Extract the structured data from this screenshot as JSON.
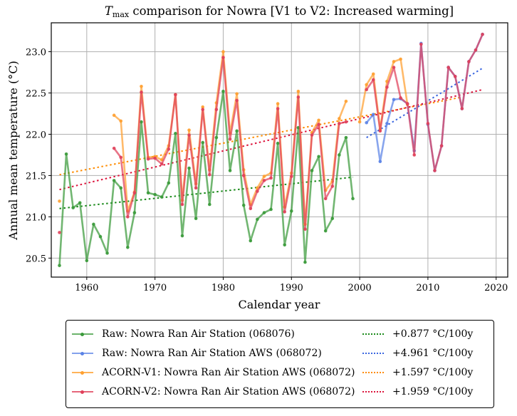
{
  "chart_data": {
    "type": "line",
    "title_main": "T",
    "title_sub": "max",
    "title_rest": " comparison for Nowra  [V1 to V2: Increased warming]",
    "xlabel": "Calendar year",
    "ylabel": "Annual mean temperature (°C)",
    "xlim": [
      1954.8,
      2021.7
    ],
    "ylim": [
      20.27,
      23.35
    ],
    "xticks": [
      1960,
      1970,
      1980,
      1990,
      2000,
      2010,
      2020
    ],
    "yticks": [
      20.5,
      21.0,
      21.5,
      22.0,
      22.5,
      23.0
    ],
    "ytick_labels": [
      "20.5",
      "21.0",
      "21.5",
      "22.0",
      "22.5",
      "23.0"
    ],
    "grid": true,
    "legend_position": "below",
    "series": [
      {
        "name": "Raw: Nowra Ran Air Station (068076)",
        "color": "#3a9a3a",
        "x": [
          1956,
          1957,
          1958,
          1959,
          1960,
          1961,
          1962,
          1963,
          1964,
          1965,
          1966,
          1967,
          1968,
          1969,
          1970,
          1971,
          1972,
          1973,
          1974,
          1975,
          1976,
          1977,
          1978,
          1979,
          1980,
          1981,
          1982,
          1983,
          1984,
          1985,
          1986,
          1987,
          1988,
          1989,
          1990,
          1991,
          1992,
          1993,
          1994,
          1995,
          1996,
          1997,
          1998,
          1999
        ],
        "y": [
          20.41,
          21.76,
          21.11,
          21.17,
          20.47,
          20.91,
          20.76,
          20.56,
          21.44,
          21.35,
          20.63,
          21.05,
          22.15,
          21.29,
          21.27,
          21.24,
          21.41,
          22.01,
          20.77,
          21.59,
          20.98,
          21.9,
          21.15,
          21.96,
          22.52,
          21.56,
          22.04,
          21.14,
          20.71,
          20.97,
          21.05,
          21.09,
          21.89,
          20.66,
          21.07,
          22.08,
          20.45,
          21.56,
          21.73,
          20.83,
          20.98,
          21.75,
          21.96,
          21.22
        ]
      },
      {
        "name": "Raw: Nowra Ran Air Station AWS (068072)",
        "color": "#5a82e6",
        "x": [
          2001,
          2002,
          2003,
          2004,
          2005,
          2006,
          2007,
          2008,
          2009,
          2010,
          2011,
          2012,
          2013,
          2014,
          2015,
          2016,
          2017,
          2018
        ],
        "y": [
          22.14,
          22.24,
          21.67,
          22.13,
          22.42,
          22.43,
          22.37,
          21.8,
          23.1,
          22.12,
          21.56,
          21.86,
          22.81,
          22.7,
          22.31,
          22.88,
          23.02,
          23.21
        ]
      },
      {
        "name": "ACORN-V1: Nowra Ran Air Station AWS (068072)",
        "color": "#ffa030",
        "x": [
          1956,
          1964,
          1965,
          1966,
          1967,
          1968,
          1969,
          1970,
          1971,
          1972,
          1973,
          1974,
          1975,
          1976,
          1977,
          1978,
          1979,
          1980,
          1981,
          1982,
          1983,
          1984,
          1985,
          1986,
          1987,
          1988,
          1989,
          1990,
          1991,
          1992,
          1993,
          1994,
          1995,
          1996,
          1997,
          1998,
          2000,
          2001,
          2002,
          2003,
          2004,
          2005,
          2006,
          2007
        ],
        "y": [
          21.19,
          22.23,
          22.16,
          21.07,
          21.3,
          22.58,
          21.72,
          21.73,
          21.69,
          21.86,
          22.48,
          21.2,
          22.05,
          21.4,
          22.33,
          21.57,
          22.38,
          23.0,
          22.01,
          22.49,
          21.57,
          21.15,
          21.35,
          21.49,
          21.53,
          22.37,
          21.12,
          21.53,
          22.52,
          20.91,
          22.02,
          22.17,
          21.32,
          21.43,
          22.19,
          22.4,
          22.15,
          22.6,
          22.73,
          22.06,
          22.64,
          22.88,
          22.91,
          22.36
        ]
      },
      {
        "name": "ACORN-V2: Nowra Ran Air Station AWS (068072)",
        "color": "#e0405a",
        "x": [
          1956,
          1964,
          1965,
          1966,
          1967,
          1968,
          1969,
          1970,
          1971,
          1972,
          1973,
          1974,
          1975,
          1976,
          1977,
          1978,
          1979,
          1980,
          1981,
          1982,
          1983,
          1984,
          1985,
          1986,
          1987,
          1988,
          1989,
          1990,
          1991,
          1992,
          1993,
          1994,
          1995,
          1996,
          1997,
          1998,
          2001,
          2002,
          2003,
          2004,
          2005,
          2006,
          2007,
          2008,
          2009,
          2010,
          2011,
          2012,
          2013,
          2014,
          2015,
          2016,
          2017,
          2018
        ],
        "y": [
          20.81,
          21.83,
          21.72,
          21.0,
          21.29,
          22.51,
          21.7,
          21.71,
          21.64,
          21.82,
          22.48,
          21.15,
          21.99,
          21.35,
          22.3,
          21.51,
          22.3,
          22.93,
          21.94,
          22.41,
          21.5,
          21.1,
          21.31,
          21.44,
          21.47,
          22.31,
          21.06,
          21.49,
          22.45,
          20.85,
          21.99,
          22.12,
          21.22,
          21.37,
          22.13,
          22.15,
          22.54,
          22.66,
          22.04,
          22.57,
          22.81,
          22.44,
          22.37,
          21.75,
          23.09,
          22.13,
          21.56,
          21.86,
          22.81,
          22.7,
          22.31,
          22.88,
          23.02,
          23.21
        ]
      }
    ],
    "trends": [
      {
        "label": "+0.877 °C/100y",
        "color": "#1a8a1a",
        "x": [
          1956,
          1999
        ],
        "y": [
          21.1,
          21.48
        ]
      },
      {
        "label": "+4.961 °C/100y",
        "color": "#3a66e0",
        "x": [
          2001,
          2018
        ],
        "y": [
          21.96,
          22.8
        ]
      },
      {
        "label": "+1.597 °C/100y",
        "color": "#ff8c00",
        "x": [
          1956,
          2015
        ],
        "y": [
          21.51,
          22.45
        ]
      },
      {
        "label": "+1.959 °C/100y",
        "color": "#dc143c",
        "x": [
          1956,
          2018
        ],
        "y": [
          21.33,
          22.54
        ]
      }
    ]
  },
  "legend": {
    "items": [
      {
        "label": "Raw: Nowra Ran Air Station (068076)",
        "color": "#3a9a3a"
      },
      {
        "label": "Raw: Nowra Ran Air Station AWS (068072)",
        "color": "#5a82e6"
      },
      {
        "label": "ACORN-V1: Nowra Ran Air Station AWS (068072)",
        "color": "#ffa030"
      },
      {
        "label": "ACORN-V2: Nowra Ran Air Station AWS (068072)",
        "color": "#e0405a"
      }
    ],
    "trend_items": [
      {
        "label": "+0.877 °C/100y",
        "color": "#1a8a1a"
      },
      {
        "label": "+4.961 °C/100y",
        "color": "#3a66e0"
      },
      {
        "label": "+1.597 °C/100y",
        "color": "#ff8c00"
      },
      {
        "label": "+1.959 °C/100y",
        "color": "#dc143c"
      }
    ]
  }
}
